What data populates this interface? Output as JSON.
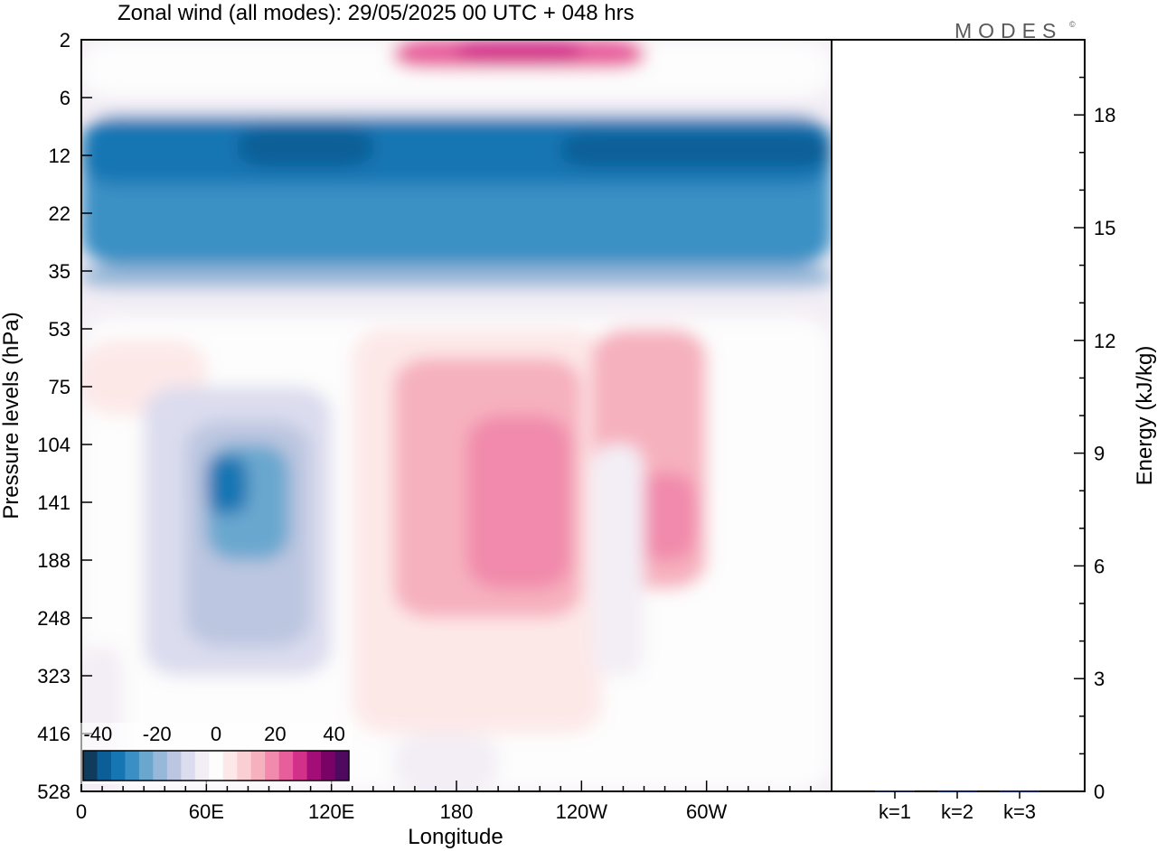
{
  "chart_data": [
    {
      "type": "heatmap",
      "title": "Zonal wind (all modes):  29/05/2025  00 UTC  + 048 hrs",
      "xlabel": "Longitude",
      "ylabel": "Pressure levels (hPa)",
      "x_ticks": [
        "0",
        "60E",
        "120E",
        "180",
        "120W",
        "60W"
      ],
      "x_tick_degrees": [
        0,
        60,
        120,
        180,
        240,
        300
      ],
      "xlim": [
        0,
        360
      ],
      "y_ticks": [
        "2",
        "6",
        "12",
        "22",
        "35",
        "53",
        "75",
        "104",
        "141",
        "188",
        "248",
        "323",
        "416",
        "528"
      ],
      "colorbar": {
        "tick_labels": [
          "-40",
          "-20",
          "0",
          "20",
          "40"
        ],
        "tick_values": [
          -40,
          -20,
          0,
          20,
          40
        ],
        "range": [
          -45,
          45
        ],
        "colors": [
          "#0f3b5c",
          "#0b5e97",
          "#1576b3",
          "#3a90c4",
          "#6aa7cf",
          "#97b8d8",
          "#bcc6e0",
          "#dbdcee",
          "#f3eef5",
          "#fdfdfd",
          "#fde8e8",
          "#f9cfd3",
          "#f6b1be",
          "#f18aac",
          "#e85d9c",
          "#d3308a",
          "#a30d78",
          "#780266",
          "#4d0a5e"
        ]
      },
      "regions": [
        {
          "lon": [
            0,
            360
          ],
          "level": [
            0,
            1
          ],
          "u": 2
        },
        {
          "lon": [
            150,
            270
          ],
          "level": [
            0,
            0.5
          ],
          "u": 22
        },
        {
          "lon": [
            180,
            240
          ],
          "level": [
            0,
            0.4
          ],
          "u": 30
        },
        {
          "lon": [
            0,
            360
          ],
          "level": [
            1,
            1.3
          ],
          "u": -4
        },
        {
          "lon": [
            0,
            360
          ],
          "level": [
            1.3,
            3.9
          ],
          "u": -28
        },
        {
          "lon": [
            0,
            360
          ],
          "level": [
            1.4,
            2.5
          ],
          "u": -34
        },
        {
          "lon": [
            75,
            140
          ],
          "level": [
            1.5,
            2.2
          ],
          "u": -38
        },
        {
          "lon": [
            230,
            360
          ],
          "level": [
            1.6,
            2.2
          ],
          "u": -38
        },
        {
          "lon": [
            0,
            360
          ],
          "level": [
            3.9,
            4.3
          ],
          "u": -18
        },
        {
          "lon": [
            0,
            360
          ],
          "level": [
            4.3,
            4.8
          ],
          "u": -6
        },
        {
          "lon": [
            0,
            360
          ],
          "level": [
            4.8,
            13
          ],
          "u": 1
        },
        {
          "lon": [
            0,
            60
          ],
          "level": [
            5.2,
            6.5
          ],
          "u": 3
        },
        {
          "lon": [
            30,
            120
          ],
          "level": [
            6,
            11
          ],
          "u": -8
        },
        {
          "lon": [
            50,
            110
          ],
          "level": [
            6.6,
            10.5
          ],
          "u": -15
        },
        {
          "lon": [
            60,
            100
          ],
          "level": [
            7,
            9
          ],
          "u": -25
        },
        {
          "lon": [
            60,
            80
          ],
          "level": [
            7.2,
            8.2
          ],
          "u": -32
        },
        {
          "lon": [
            130,
            250
          ],
          "level": [
            5,
            12
          ],
          "u": 6
        },
        {
          "lon": [
            150,
            240
          ],
          "level": [
            5.5,
            10
          ],
          "u": 12
        },
        {
          "lon": [
            185,
            235
          ],
          "level": [
            6.5,
            9.5
          ],
          "u": 20
        },
        {
          "lon": [
            245,
            300
          ],
          "level": [
            5,
            9.5
          ],
          "u": 12
        },
        {
          "lon": [
            265,
            295
          ],
          "level": [
            7.5,
            9
          ],
          "u": 20
        },
        {
          "lon": [
            245,
            270
          ],
          "level": [
            7,
            11
          ],
          "u": -4
        },
        {
          "lon": [
            150,
            200
          ],
          "level": [
            12,
            13
          ],
          "u": -4
        },
        {
          "lon": [
            0,
            20
          ],
          "level": [
            10.5,
            13
          ],
          "u": -4
        }
      ]
    },
    {
      "type": "bar",
      "categories": [
        "k=1",
        "k=2",
        "k=3"
      ],
      "values": [
        0.02,
        0.01,
        0.01
      ],
      "ylabel": "Energy (kJ/kg)",
      "ylim": [
        0,
        20
      ],
      "y_ticks": [
        "0",
        "3",
        "6",
        "9",
        "12",
        "15",
        "18"
      ],
      "y_tick_values": [
        0,
        3,
        6,
        9,
        12,
        15,
        18
      ],
      "bar_color": "#1a2a6c"
    }
  ],
  "logo": {
    "text": "MODES",
    "mark": "©"
  }
}
